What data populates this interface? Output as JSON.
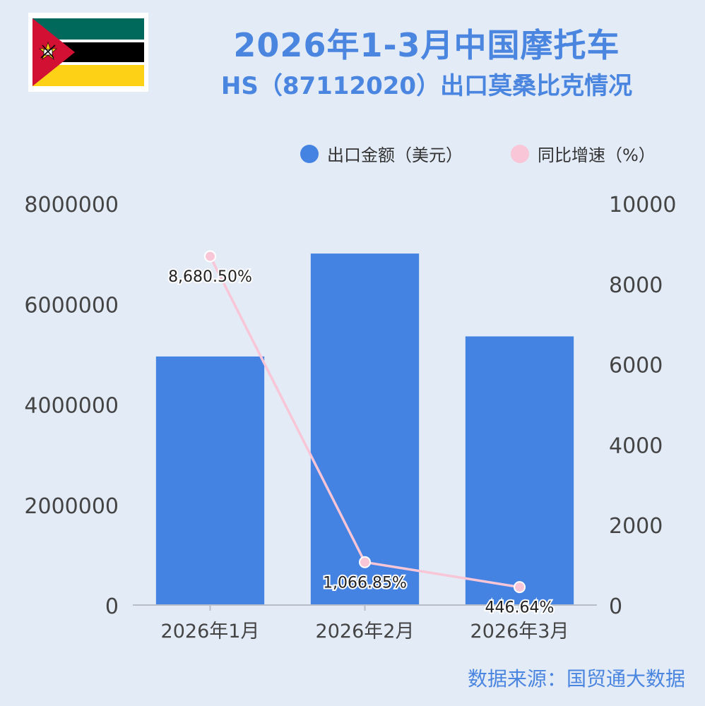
{
  "title": "2026年1-3月中国摩托车",
  "subtitle": "HS（87112020）出口莫桑比克情况",
  "legend": {
    "bar_label": "出口金额（美元）",
    "line_label": "同比增速（%）"
  },
  "source": "数据来源：国贸通大数据",
  "colors": {
    "bar": "#4583e3",
    "line": "#f8c6d6",
    "title": "#4a85e0",
    "background": "#e3ebf7"
  },
  "flag": {
    "icon": "mozambique-flag-icon"
  },
  "chart_data": {
    "type": "bar",
    "categories": [
      "2026年1月",
      "2026年2月",
      "2026年3月"
    ],
    "series": [
      {
        "name": "出口金额（美元）",
        "type": "bar",
        "axis": "left",
        "values": [
          4950000,
          7000000,
          5350000
        ]
      },
      {
        "name": "同比增速（%）",
        "type": "line",
        "axis": "right",
        "values": [
          8680.5,
          1066.85,
          446.64
        ],
        "labels": [
          "8,680.50%",
          "1,066.85%",
          "446.64%"
        ]
      }
    ],
    "left_axis": {
      "ylim": [
        0,
        8000000
      ],
      "ticks": [
        "0",
        "2000000",
        "4000000",
        "6000000",
        "8000000"
      ]
    },
    "right_axis": {
      "ylim": [
        0,
        10000
      ],
      "ticks": [
        "0",
        "2000",
        "4000",
        "6000",
        "8000",
        "10000"
      ]
    },
    "grid": false,
    "legend_position": "top-right"
  }
}
